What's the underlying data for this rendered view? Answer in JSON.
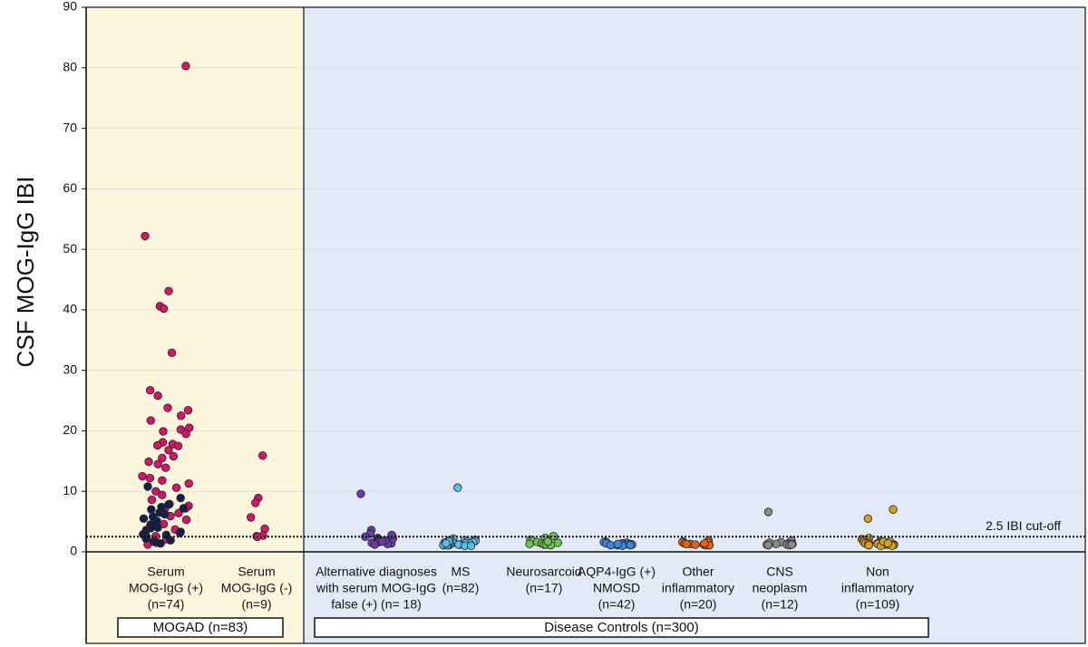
{
  "chart_data": {
    "type": "strip",
    "y_label": "CSF MOG-IgG IBI",
    "ylim": [
      0,
      90
    ],
    "yticks": [
      0,
      10,
      20,
      30,
      40,
      50,
      60,
      70,
      80,
      90
    ],
    "grid": true,
    "cutoff": {
      "value": 2.5,
      "label": "2.5 IBI cut-off"
    },
    "groups": [
      {
        "label": "MOGAD (n=83)",
        "color": "#fdf6dc"
      },
      {
        "label": "Disease Controls (n=300)",
        "color": "#e3eaf7"
      }
    ],
    "categories": [
      {
        "label": [
          "Serum",
          "MOG-IgG (+)",
          "(n=74)"
        ],
        "points": [
          {
            "color": "#d6156a",
            "values": [
              80.3,
              52.2,
              43.1,
              40.6,
              40.2,
              32.9,
              26.7,
              25.8,
              23.8,
              23.4,
              22.5,
              21.7,
              20.5,
              20.2,
              19.9,
              19.5,
              18.1,
              17.8,
              17.6,
              17.5,
              16.8,
              15.8,
              15.5,
              14.9,
              14.5,
              13.9,
              12.5,
              12.2,
              11.8,
              11.3,
              10.6,
              10.0,
              9.4,
              8.6,
              7.9,
              7.6,
              7.2,
              6.9,
              6.4,
              5.9,
              5.3,
              4.6,
              4.2,
              3.7,
              3.1,
              2.6,
              2.1,
              1.6,
              1.2,
              1.5
            ]
          },
          {
            "color": "#14204a",
            "values": [
              10.8,
              8.9,
              7.8,
              7.4,
              7.2,
              6.2,
              5.8,
              5.1,
              4.5,
              4.1,
              3.6,
              3.3,
              2.9,
              2.5,
              2.2,
              1.9,
              1.7,
              1.4,
              4.0,
              6.5,
              2.8,
              3.9,
              5.5,
              7.0
            ]
          }
        ]
      },
      {
        "label": [
          "Serum",
          "MOG-IgG (-)",
          "(n=9)"
        ],
        "points": [
          {
            "color": "#d6156a",
            "values": [
              15.9,
              8.9,
              8.1,
              5.7,
              3.8,
              2.7,
              2.6,
              2.5,
              2.5
            ]
          }
        ]
      },
      {
        "label": [
          "Alternative diagnoses",
          "with serum MOG-IgG",
          "false (+)  (n= 18)"
        ],
        "points": [
          {
            "color": "#6a3aa8",
            "values": [
              9.6,
              3.6,
              3.0,
              2.6,
              2.3,
              2.1,
              2.0,
              1.8,
              1.6,
              1.5,
              1.4,
              1.3,
              2.5,
              1.9,
              1.7,
              2.2,
              1.2,
              2.8
            ]
          }
        ]
      },
      {
        "label": [
          "MS",
          "(n=82)"
        ],
        "points": [
          {
            "color": "#5bbbe8",
            "values": [
              10.6,
              2.2,
              2.0,
              1.9,
              1.8,
              1.7,
              1.6,
              1.6,
              1.5,
              1.5,
              1.4,
              1.4,
              1.3,
              1.3,
              1.2,
              1.2,
              1.2,
              1.1,
              1.1,
              1.1,
              1.0,
              1.0,
              1.9,
              1.7,
              1.4
            ]
          }
        ]
      },
      {
        "label": [
          "Neurosarcoid",
          "(n=17)"
        ],
        "points": [
          {
            "color": "#6cc24a",
            "values": [
              2.6,
              2.3,
              2.0,
              1.8,
              1.6,
              1.5,
              1.4,
              1.3,
              1.2,
              1.2,
              1.1,
              1.7
            ]
          }
        ]
      },
      {
        "label": [
          "AQP4-IgG (+)",
          "NMOSD",
          "(n=42)"
        ],
        "points": [
          {
            "color": "#3d88d6",
            "values": [
              1.7,
              1.6,
              1.5,
              1.5,
              1.4,
              1.4,
              1.3,
              1.3,
              1.2,
              1.2,
              1.2,
              1.1,
              1.1,
              1.1,
              1.0,
              1.3
            ]
          }
        ]
      },
      {
        "label": [
          "Other",
          "inflammatory",
          "(n=20)"
        ],
        "points": [
          {
            "color": "#e0621b",
            "values": [
              1.9,
              1.7,
              1.6,
              1.5,
              1.4,
              1.3,
              1.3,
              1.2,
              1.2,
              1.1,
              1.1,
              1.4
            ]
          }
        ]
      },
      {
        "label": [
          "CNS",
          "neoplasm",
          "(n=12)"
        ],
        "points": [
          {
            "color": "#8a8a8a",
            "values": [
              6.6,
              1.9,
              1.6,
              1.4,
              1.3,
              1.2,
              1.2,
              1.1,
              1.3,
              1.5,
              1.2,
              1.1
            ]
          }
        ]
      },
      {
        "label": [
          "Non",
          "inflammatory",
          "(n=109)"
        ],
        "points": [
          {
            "color": "#d4a020",
            "values": [
              7.0,
              5.5,
              2.3,
              2.1,
              1.9,
              1.8,
              1.7,
              1.6,
              1.6,
              1.5,
              1.5,
              1.4,
              1.4,
              1.3,
              1.3,
              1.3,
              1.2,
              1.2,
              1.2,
              1.1,
              1.1,
              1.0,
              1.0,
              1.7,
              1.4
            ]
          }
        ]
      }
    ]
  }
}
